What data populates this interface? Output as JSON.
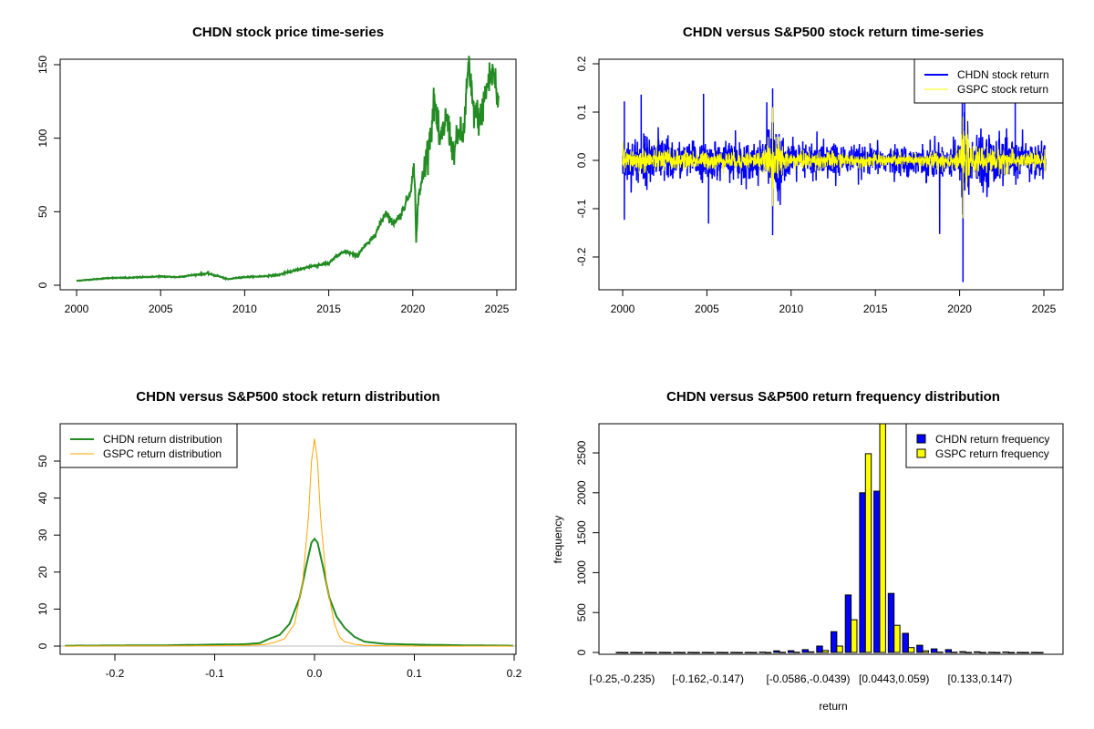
{
  "chart_data": [
    {
      "id": "price",
      "type": "line",
      "title": "CHDN stock price time-series",
      "xlabel": "",
      "ylabel": "",
      "xlim": [
        2000,
        2025.2
      ],
      "ylim": [
        0,
        150
      ],
      "xticks": [
        "2000",
        "2005",
        "2010",
        "2015",
        "2020",
        "2025"
      ],
      "yticks": [
        "0",
        "50",
        "100",
        "150"
      ],
      "series": [
        {
          "name": "CHDN price",
          "color": "#228B22",
          "x": [
            2000.0,
            2001.0,
            2002.0,
            2003.0,
            2004.0,
            2005.0,
            2006.0,
            2007.0,
            2007.8,
            2008.5,
            2009.0,
            2009.5,
            2010.0,
            2011.0,
            2012.0,
            2013.0,
            2014.0,
            2015.0,
            2015.5,
            2016.0,
            2016.7,
            2017.0,
            2017.5,
            2018.0,
            2018.4,
            2018.8,
            2019.3,
            2019.8,
            2020.1,
            2020.2,
            2020.3,
            2020.6,
            2021.0,
            2021.3,
            2021.6,
            2022.0,
            2022.4,
            2022.8,
            2023.0,
            2023.3,
            2023.6,
            2024.0,
            2024.4,
            2024.8,
            2025.1
          ],
          "y": [
            3,
            4,
            5,
            5,
            5.5,
            6,
            5.5,
            7,
            8,
            6,
            4,
            5,
            5.5,
            6,
            7,
            10,
            13,
            15,
            20,
            23,
            20,
            25,
            30,
            40,
            50,
            42,
            48,
            62,
            80,
            30,
            55,
            75,
            100,
            125,
            95,
            115,
            90,
            105,
            100,
            148,
            120,
            112,
            135,
            146,
            121
          ]
        }
      ]
    },
    {
      "id": "returns",
      "type": "line",
      "title": "CHDN versus S&P500 stock return time-series",
      "xlabel": "",
      "ylabel": "",
      "xlim": [
        2000,
        2025.2
      ],
      "ylim": [
        -0.26,
        0.2
      ],
      "xticks": [
        "2000",
        "2005",
        "2010",
        "2015",
        "2020",
        "2025"
      ],
      "yticks": [
        "-0.2",
        "-0.1",
        "0.0",
        "0.1",
        "0.2"
      ],
      "legend_position": "top-right",
      "series": [
        {
          "name": "CHDN stock return",
          "color": "#0000FF",
          "notable_extremes": [
            {
              "x": 2000.1,
              "y": 0.122
            },
            {
              "x": 2000.1,
              "y": -0.123
            },
            {
              "x": 2001.1,
              "y": 0.136
            },
            {
              "x": 2004.8,
              "y": 0.138
            },
            {
              "x": 2005.1,
              "y": -0.131
            },
            {
              "x": 2008.9,
              "y": 0.149
            },
            {
              "x": 2008.9,
              "y": -0.155
            },
            {
              "x": 2020.2,
              "y": -0.252
            },
            {
              "x": 2020.3,
              "y": 0.12
            },
            {
              "x": 2023.3,
              "y": 0.12
            }
          ],
          "typical_band": [
            -0.04,
            0.04
          ]
        },
        {
          "name": "GSPC stock return",
          "color": "#FFFF00",
          "notable_extremes": [
            {
              "x": 2008.9,
              "y": 0.11
            },
            {
              "x": 2008.9,
              "y": -0.095
            },
            {
              "x": 2020.2,
              "y": 0.09
            },
            {
              "x": 2020.2,
              "y": -0.12
            }
          ],
          "typical_band": [
            -0.02,
            0.02
          ]
        }
      ]
    },
    {
      "id": "density",
      "type": "line",
      "title": "CHDN versus S&P500 stock return distribution",
      "xlabel": "",
      "ylabel": "",
      "xlim": [
        -0.26,
        0.2
      ],
      "ylim": [
        0,
        57
      ],
      "xticks": [
        "-0.2",
        "-0.1",
        "0.0",
        "0.1",
        "0.2"
      ],
      "yticks": [
        "0",
        "10",
        "20",
        "30",
        "40",
        "50"
      ],
      "legend_position": "top-left",
      "series": [
        {
          "name": "CHDN return distribution",
          "color": "#228B22",
          "x": [
            -0.25,
            -0.15,
            -0.1,
            -0.07,
            -0.055,
            -0.045,
            -0.035,
            -0.025,
            -0.015,
            -0.008,
            -0.003,
            0.0,
            0.003,
            0.008,
            0.015,
            0.022,
            0.03,
            0.04,
            0.05,
            0.07,
            0.1,
            0.15,
            0.2
          ],
          "y": [
            0.1,
            0.2,
            0.4,
            0.5,
            0.8,
            2,
            3,
            6,
            13,
            22,
            28,
            29,
            28,
            22,
            13,
            8,
            5,
            2.5,
            1.2,
            0.6,
            0.4,
            0.2,
            0.1
          ]
        },
        {
          "name": "GSPC return distribution",
          "color": "#FFA500",
          "x": [
            -0.25,
            -0.1,
            -0.07,
            -0.05,
            -0.04,
            -0.03,
            -0.02,
            -0.012,
            -0.006,
            -0.003,
            0.0,
            0.003,
            0.006,
            0.012,
            0.02,
            0.025,
            0.03,
            0.04,
            0.05,
            0.07,
            0.1,
            0.2
          ],
          "y": [
            0,
            0.1,
            0.2,
            0.4,
            1,
            2,
            6,
            17,
            35,
            50,
            56,
            50,
            35,
            17,
            6,
            2.5,
            1.2,
            0.5,
            0.2,
            0.1,
            0,
            0
          ]
        }
      ]
    },
    {
      "id": "histogram",
      "type": "bar",
      "title": "CHDN versus S&P500 return frequency distribution",
      "xlabel": "return",
      "ylabel": "frequency",
      "ylim": [
        0,
        2850
      ],
      "yticks": [
        "0",
        "500",
        "1000",
        "1500",
        "2000",
        "2500"
      ],
      "legend_position": "top-right",
      "category_labels_shown": [
        "[-0.25,-0.235)",
        "[-0.162,-0.147)",
        "[-0.0586,-0.0439)",
        "[0.0443,0.059)",
        "[0.133,0.147)"
      ],
      "category_label_indices": [
        0,
        6,
        13,
        19,
        25
      ],
      "categories_count": 30,
      "series": [
        {
          "name": "CHDN return frequency",
          "color": "#0000FF",
          "values": [
            1,
            1,
            1,
            1,
            1,
            1,
            1,
            1,
            1,
            1,
            4,
            20,
            22,
            35,
            80,
            260,
            720,
            2000,
            2020,
            740,
            240,
            90,
            45,
            35,
            10,
            8,
            2,
            6,
            1,
            1
          ]
        },
        {
          "name": "GSPC return frequency",
          "color": "#FFFF00",
          "values": [
            0,
            0,
            0,
            0,
            0,
            0,
            0,
            0,
            0,
            0,
            0,
            2,
            3,
            8,
            25,
            80,
            410,
            2490,
            2950,
            340,
            60,
            20,
            5,
            3,
            1,
            0,
            0,
            0,
            0,
            0
          ]
        }
      ]
    }
  ]
}
